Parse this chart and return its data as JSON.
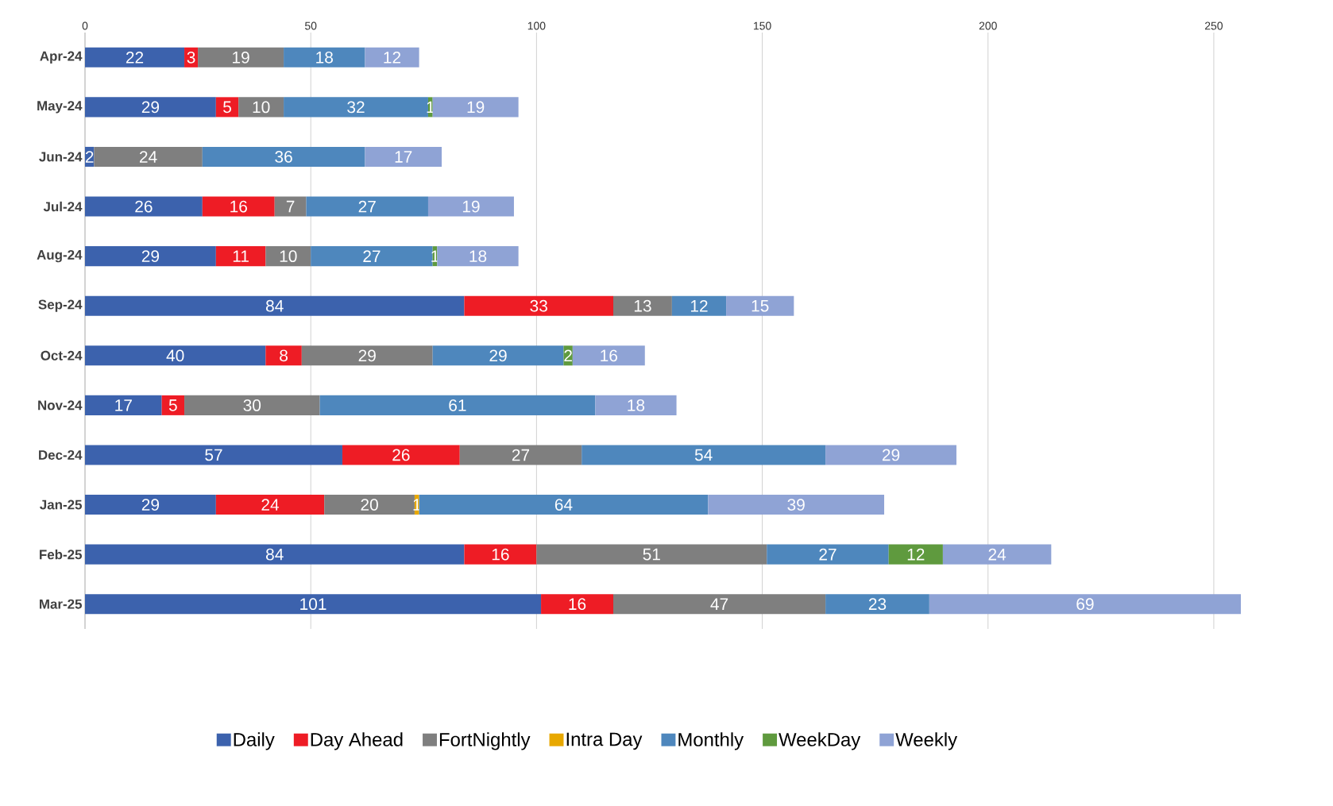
{
  "chart_data": {
    "type": "bar",
    "orientation": "horizontal",
    "stacked": true,
    "data_labels": true,
    "grid": "x",
    "legend": "bottom",
    "categories": [
      "Apr-24",
      "May-24",
      "Jun-24",
      "Jul-24",
      "Aug-24",
      "Sep-24",
      "Oct-24",
      "Nov-24",
      "Dec-24",
      "Jan-25",
      "Feb-25",
      "Mar-25"
    ],
    "xlim": [
      0,
      256
    ],
    "xticks": [
      0,
      50,
      100,
      150,
      200,
      250
    ],
    "series": [
      {
        "name": "Daily",
        "color": "#3c62ad",
        "values": [
          22,
          29,
          2,
          26,
          29,
          84,
          40,
          17,
          57,
          29,
          84,
          101
        ]
      },
      {
        "name": "Day Ahead",
        "color": "#ee1c25",
        "values": [
          3,
          5,
          null,
          16,
          11,
          33,
          8,
          5,
          26,
          24,
          16,
          16
        ]
      },
      {
        "name": "FortNightly",
        "color": "#7f7f7f",
        "values": [
          19,
          10,
          24,
          7,
          10,
          13,
          29,
          30,
          27,
          20,
          51,
          47
        ]
      },
      {
        "name": "Intra Day",
        "color": "#e8a800",
        "values": [
          null,
          null,
          null,
          null,
          null,
          null,
          null,
          null,
          null,
          1,
          null,
          null
        ]
      },
      {
        "name": "Monthly",
        "color": "#4e87bd",
        "values": [
          18,
          32,
          36,
          27,
          27,
          12,
          29,
          61,
          54,
          64,
          27,
          23
        ]
      },
      {
        "name": "WeekDay",
        "color": "#5f9a3e",
        "values": [
          null,
          1,
          null,
          null,
          1,
          null,
          2,
          null,
          null,
          null,
          12,
          null
        ]
      },
      {
        "name": "Weekly",
        "color": "#8fa3d5",
        "values": [
          12,
          19,
          17,
          19,
          18,
          15,
          16,
          18,
          29,
          39,
          24,
          69
        ]
      }
    ]
  }
}
